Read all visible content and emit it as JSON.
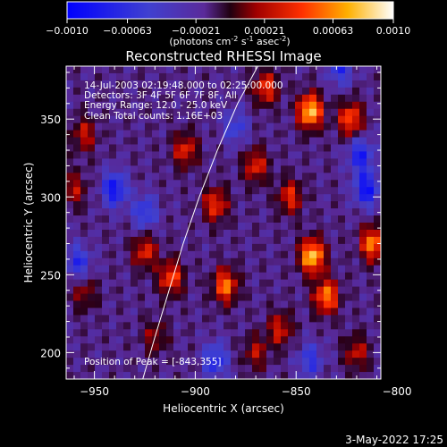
{
  "chart_data": {
    "type": "heatmap",
    "title": "Reconstructed RHESSI Image",
    "xlabel": "Heliocentric X (arcsec)",
    "ylabel": "Heliocentric Y (arcsec)",
    "xlim": [
      -964,
      -808
    ],
    "ylim": [
      183,
      384
    ],
    "x_ticks": [
      -950,
      -900,
      -850,
      -800
    ],
    "y_ticks": [
      200,
      250,
      300,
      350
    ],
    "colorbar": {
      "label_prefix": "(photons cm",
      "label_sup1": "-2",
      "label_mid": " s",
      "label_sup2": "-1",
      "label_mid2": " asec",
      "label_sup3": "-2",
      "label_suffix": ")",
      "min": -0.001,
      "max": 0.001,
      "ticks": [
        "-0.0010",
        "-0.00063",
        "-0.00021",
        "0.00021",
        "0.00063",
        "0.0010"
      ]
    },
    "annotations": {
      "time": "14-Jul-2003 02:19:48.000 to 02:25:00.000",
      "detectors": "Detectors: 3F 4F 5F 6F 7F 8F, All",
      "energy": "Energy Range: 12.0 - 25.0 keV",
      "method": "Clean     Total counts: 1.16E+03",
      "peak": "Position of Peak = [-843,355]"
    },
    "peak_position": [
      -843,
      355
    ],
    "limb_curve": {
      "x": [
        -926,
        -920,
        -913,
        -906,
        -898,
        -889,
        -879,
        -869
      ],
      "y": [
        183,
        210,
        240,
        270,
        300,
        330,
        360,
        384
      ]
    },
    "sources": [
      {
        "x": -843,
        "y": 355,
        "intensity": 1.0
      },
      {
        "x": -842,
        "y": 262,
        "intensity": 1.0
      },
      {
        "x": -812,
        "y": 270,
        "intensity": 0.8
      },
      {
        "x": -835,
        "y": 236,
        "intensity": 0.8
      },
      {
        "x": -885,
        "y": 243,
        "intensity": 0.75
      },
      {
        "x": -912,
        "y": 248,
        "intensity": 0.65
      },
      {
        "x": -925,
        "y": 265,
        "intensity": 0.55
      },
      {
        "x": -890,
        "y": 295,
        "intensity": 0.6
      },
      {
        "x": -870,
        "y": 320,
        "intensity": 0.55
      },
      {
        "x": -853,
        "y": 300,
        "intensity": 0.55
      },
      {
        "x": -905,
        "y": 330,
        "intensity": 0.55
      },
      {
        "x": -955,
        "y": 340,
        "intensity": 0.45
      },
      {
        "x": -960,
        "y": 305,
        "intensity": 0.4
      },
      {
        "x": -823,
        "y": 350,
        "intensity": 0.7
      },
      {
        "x": -865,
        "y": 370,
        "intensity": 0.6
      },
      {
        "x": -820,
        "y": 200,
        "intensity": 0.45
      },
      {
        "x": -870,
        "y": 200,
        "intensity": 0.4
      },
      {
        "x": -858,
        "y": 215,
        "intensity": 0.5
      },
      {
        "x": -955,
        "y": 238,
        "intensity": 0.35
      },
      {
        "x": -920,
        "y": 210,
        "intensity": 0.35
      }
    ],
    "sinks": [
      {
        "x": -940,
        "y": 305,
        "intensity": -0.7
      },
      {
        "x": -815,
        "y": 305,
        "intensity": -0.7
      },
      {
        "x": -818,
        "y": 327,
        "intensity": -0.6
      },
      {
        "x": -828,
        "y": 383,
        "intensity": -0.5
      },
      {
        "x": -925,
        "y": 290,
        "intensity": -0.5
      },
      {
        "x": -890,
        "y": 195,
        "intensity": -0.55
      },
      {
        "x": -958,
        "y": 258,
        "intensity": -0.5
      },
      {
        "x": -843,
        "y": 195,
        "intensity": -0.45
      },
      {
        "x": -880,
        "y": 345,
        "intensity": -0.4
      }
    ]
  },
  "footer": {
    "date": "3-May-2022 17:25"
  }
}
